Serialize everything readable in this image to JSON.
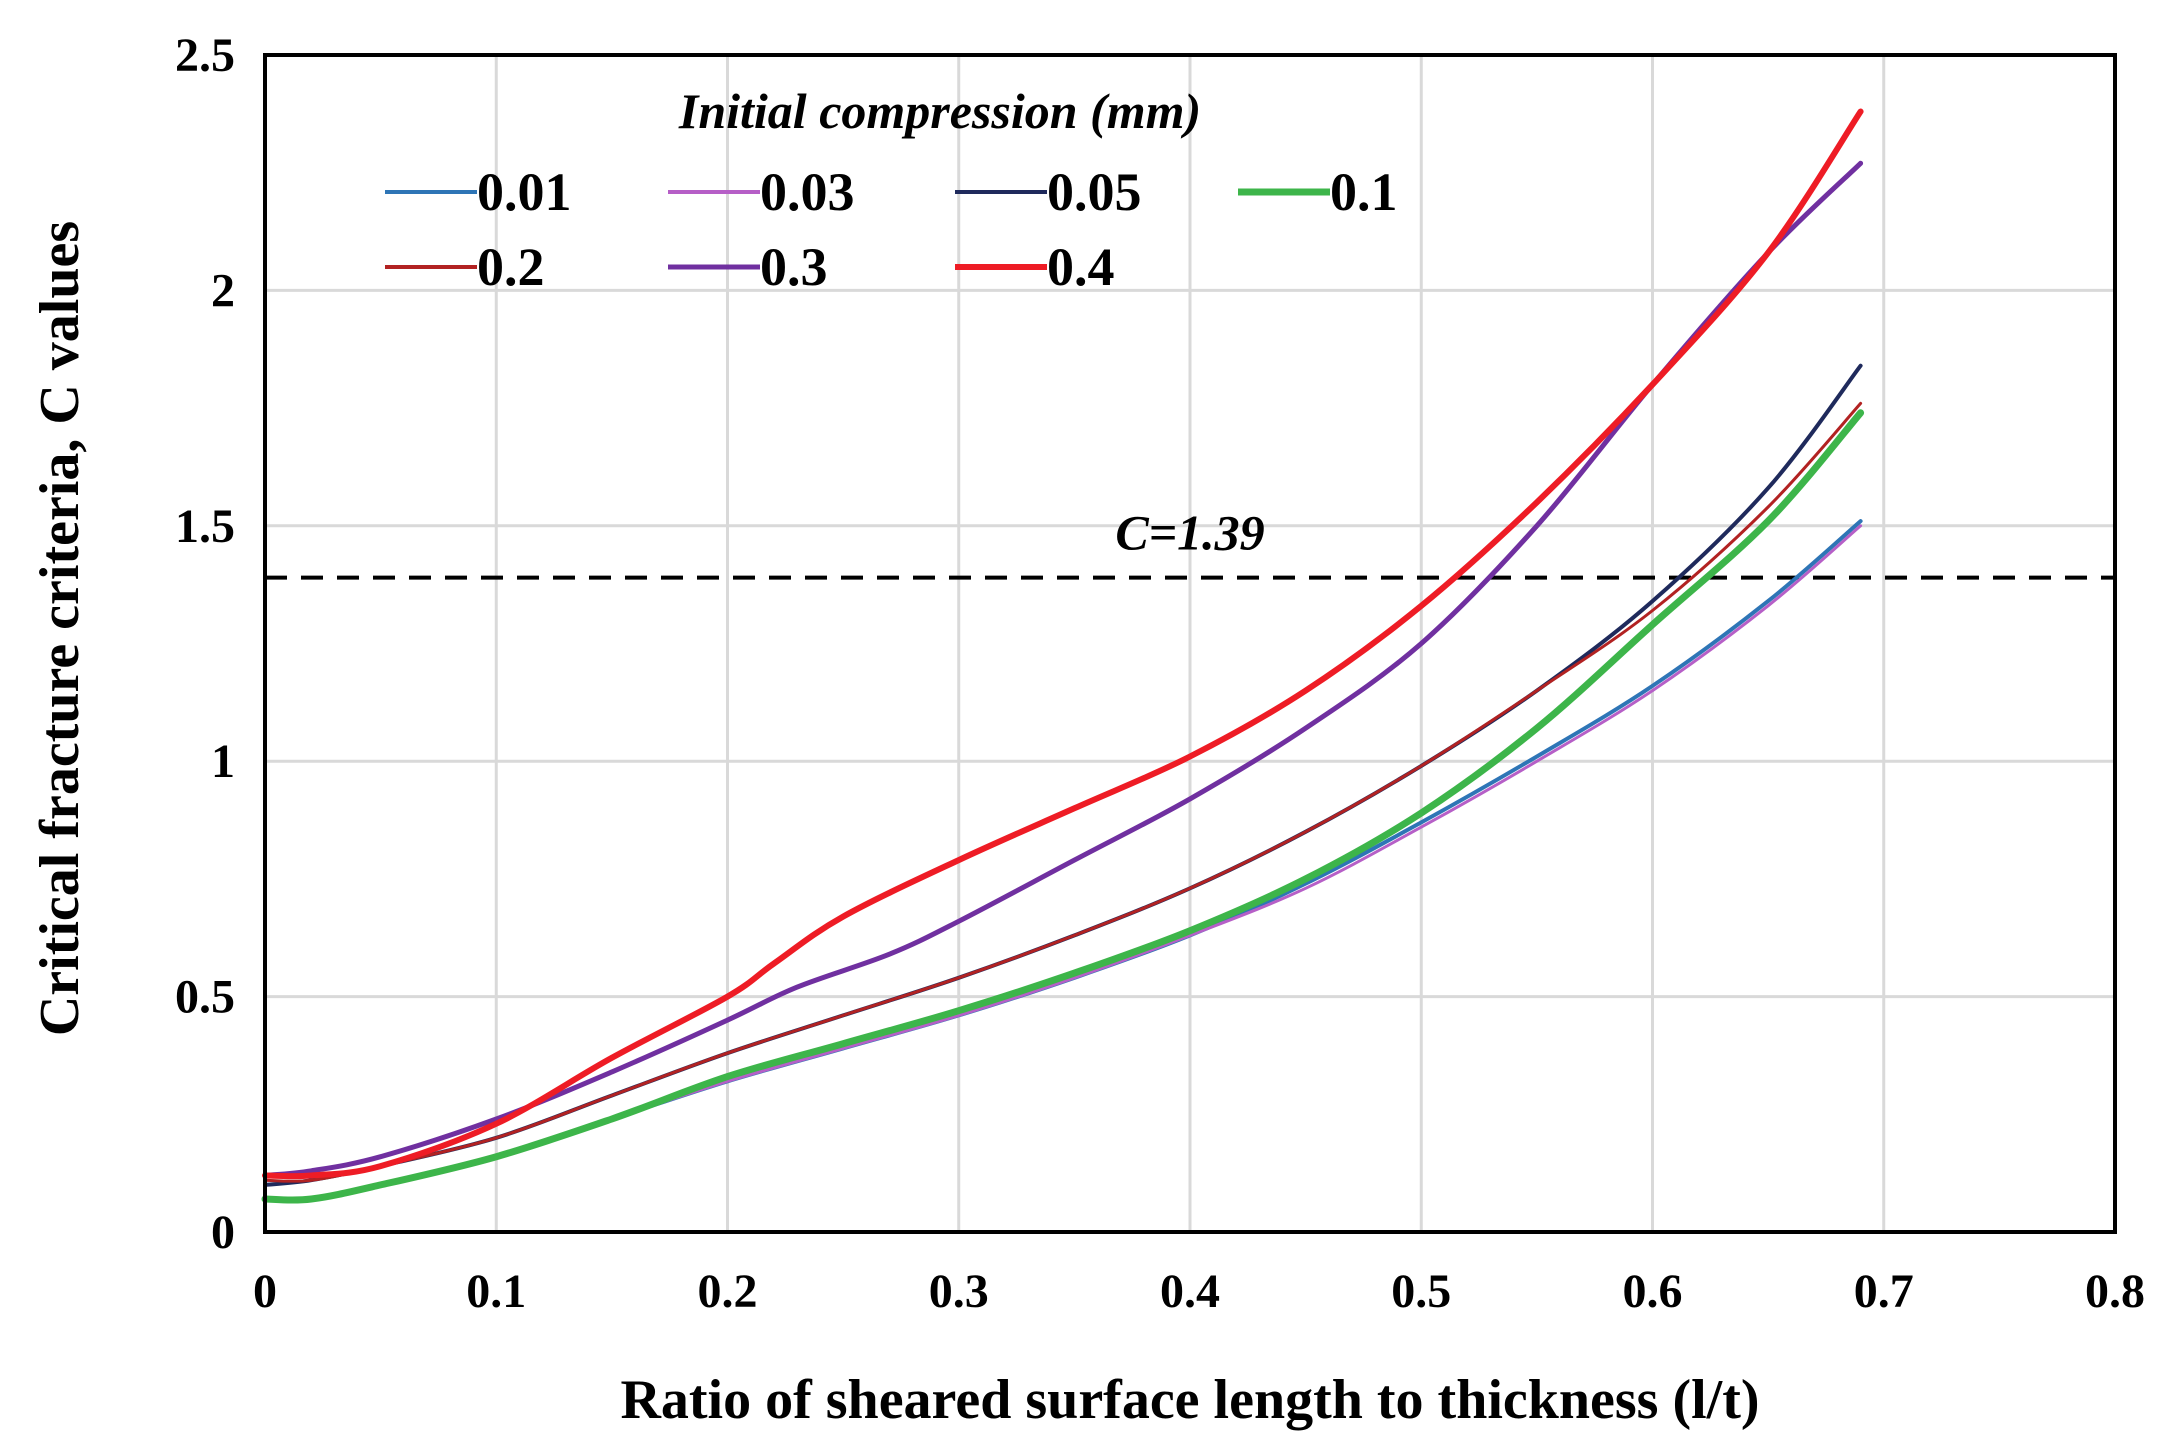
{
  "chart_data": {
    "type": "line",
    "title": "",
    "xlabel": "Ratio of sheared surface length to thickness (l/t)",
    "ylabel": "Critical fracture criteria, C values",
    "xlim": [
      0,
      0.8
    ],
    "ylim": [
      0,
      2.5
    ],
    "xticks": [
      0,
      0.1,
      0.2,
      0.3,
      0.4,
      0.5,
      0.6,
      0.7,
      0.8
    ],
    "yticks": [
      0,
      0.5,
      1,
      1.5,
      2,
      2.5
    ],
    "xtick_labels": [
      "0",
      "0.1",
      "0.2",
      "0.3",
      "0.4",
      "0.5",
      "0.6",
      "0.7",
      "0.8"
    ],
    "ytick_labels": [
      "0",
      "0.5",
      "1",
      "1.5",
      "2",
      "2.5"
    ],
    "grid": true,
    "legend": {
      "title": "Initial compression (mm)",
      "placement": "top-left"
    },
    "reference_line": {
      "value": 1.39,
      "label": "C=1.39",
      "color": "#000000",
      "style": "dashed"
    },
    "series": [
      {
        "name": "0.01",
        "color": "#2E75B6",
        "stroke": 4,
        "x": [
          0,
          0.02,
          0.05,
          0.1,
          0.15,
          0.2,
          0.25,
          0.3,
          0.35,
          0.4,
          0.45,
          0.5,
          0.55,
          0.6,
          0.65,
          0.69
        ],
        "y": [
          0.07,
          0.07,
          0.1,
          0.16,
          0.24,
          0.32,
          0.39,
          0.46,
          0.54,
          0.63,
          0.74,
          0.87,
          1.01,
          1.16,
          1.34,
          1.51
        ]
      },
      {
        "name": "0.03",
        "color": "#B65FC7",
        "stroke": 3,
        "x": [
          0,
          0.02,
          0.05,
          0.1,
          0.15,
          0.2,
          0.25,
          0.3,
          0.35,
          0.4,
          0.45,
          0.5,
          0.55,
          0.6,
          0.65,
          0.69
        ],
        "y": [
          0.07,
          0.07,
          0.1,
          0.16,
          0.24,
          0.32,
          0.39,
          0.46,
          0.54,
          0.63,
          0.73,
          0.86,
          1.0,
          1.15,
          1.33,
          1.5
        ]
      },
      {
        "name": "0.05",
        "color": "#1F2A5C",
        "stroke": 4,
        "x": [
          0,
          0.02,
          0.05,
          0.1,
          0.15,
          0.2,
          0.25,
          0.3,
          0.35,
          0.4,
          0.45,
          0.5,
          0.55,
          0.6,
          0.65,
          0.69
        ],
        "y": [
          0.1,
          0.11,
          0.14,
          0.2,
          0.29,
          0.38,
          0.46,
          0.54,
          0.63,
          0.73,
          0.85,
          0.99,
          1.15,
          1.34,
          1.58,
          1.84
        ]
      },
      {
        "name": "0.1",
        "color": "#3DB54A",
        "stroke": 7,
        "x": [
          0,
          0.02,
          0.05,
          0.1,
          0.15,
          0.2,
          0.25,
          0.3,
          0.35,
          0.4,
          0.45,
          0.5,
          0.55,
          0.6,
          0.65,
          0.69
        ],
        "y": [
          0.07,
          0.07,
          0.1,
          0.16,
          0.24,
          0.33,
          0.4,
          0.47,
          0.55,
          0.64,
          0.75,
          0.89,
          1.07,
          1.29,
          1.51,
          1.74
        ]
      },
      {
        "name": "0.2",
        "color": "#B22222",
        "stroke": 3,
        "x": [
          0,
          0.02,
          0.05,
          0.1,
          0.15,
          0.2,
          0.25,
          0.3,
          0.35,
          0.4,
          0.45,
          0.5,
          0.55,
          0.6,
          0.65,
          0.69
        ],
        "y": [
          0.11,
          0.11,
          0.14,
          0.2,
          0.29,
          0.38,
          0.46,
          0.54,
          0.63,
          0.73,
          0.85,
          0.99,
          1.15,
          1.32,
          1.54,
          1.76
        ]
      },
      {
        "name": "0.3",
        "color": "#7030A0",
        "stroke": 5,
        "x": [
          0,
          0.02,
          0.05,
          0.1,
          0.15,
          0.2,
          0.23,
          0.27,
          0.3,
          0.35,
          0.4,
          0.45,
          0.5,
          0.55,
          0.6,
          0.65,
          0.69
        ],
        "y": [
          0.12,
          0.13,
          0.16,
          0.24,
          0.34,
          0.45,
          0.52,
          0.59,
          0.66,
          0.79,
          0.92,
          1.07,
          1.25,
          1.5,
          1.8,
          2.08,
          2.27
        ]
      },
      {
        "name": "0.4",
        "color": "#EE1C25",
        "stroke": 6,
        "x": [
          0,
          0.02,
          0.05,
          0.1,
          0.15,
          0.2,
          0.22,
          0.25,
          0.3,
          0.35,
          0.4,
          0.45,
          0.5,
          0.55,
          0.6,
          0.65,
          0.69
        ],
        "y": [
          0.12,
          0.12,
          0.14,
          0.23,
          0.37,
          0.5,
          0.57,
          0.67,
          0.79,
          0.9,
          1.01,
          1.15,
          1.33,
          1.55,
          1.8,
          2.08,
          2.38
        ]
      }
    ]
  }
}
